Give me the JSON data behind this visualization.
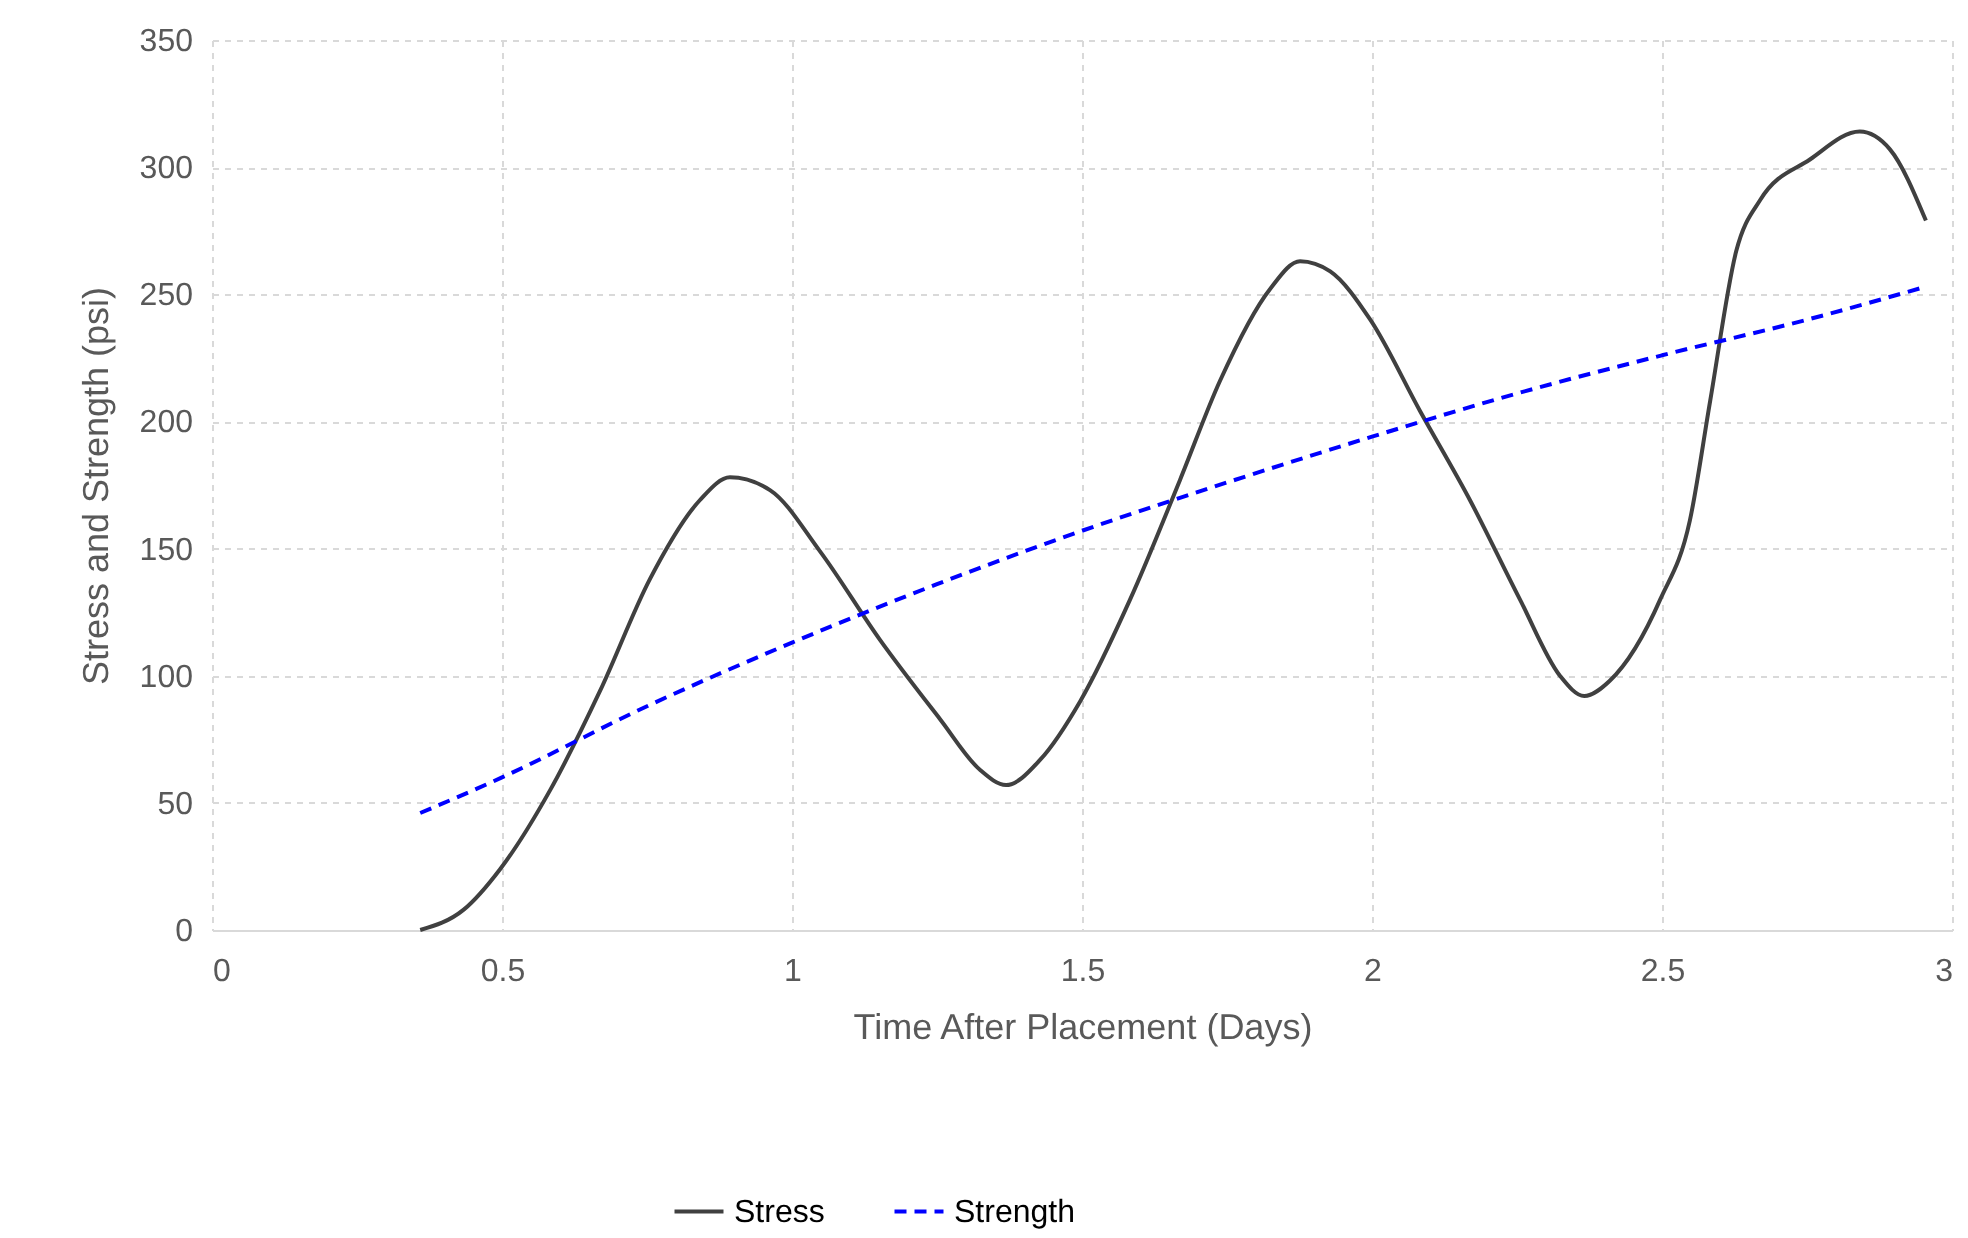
{
  "chart_data": {
    "type": "line",
    "xlabel": "Time After Placement (Days)",
    "ylabel": "Stress and Strength (psi)",
    "xlim": [
      0,
      3
    ],
    "xticks": [
      0,
      0.5,
      1,
      1.5,
      2,
      2.5,
      3
    ],
    "ylim": [
      0,
      350
    ],
    "yticks": [
      0,
      50,
      100,
      150,
      200,
      250,
      300,
      350
    ],
    "grid": true,
    "legend": "bottom",
    "marker": "none",
    "series": [
      {
        "name": "Stress",
        "color": "#404040",
        "line_style": "solid",
        "x": [
          0.359,
          0.434,
          0.497,
          0.583,
          0.669,
          0.755,
          0.841,
          0.893,
          0.962,
          1.048,
          1.152,
          1.255,
          1.324,
          1.369,
          1.428,
          1.497,
          1.583,
          1.669,
          1.738,
          1.824,
          1.876,
          1.928,
          1.997,
          2.083,
          2.169,
          2.255,
          2.324,
          2.366,
          2.41,
          2.497,
          2.548,
          2.583,
          2.628,
          2.669,
          2.755,
          2.841,
          2.893,
          2.955
        ],
        "values": [
          0,
          8,
          24,
          55,
          94,
          138,
          169,
          178,
          173,
          149,
          114,
          83,
          63,
          57,
          67,
          90,
          130,
          177,
          216,
          252,
          263,
          259,
          240,
          204,
          169,
          130,
          100,
          92,
          98,
          130,
          161,
          208,
          267,
          287,
          303,
          314,
          307,
          279
        ]
      },
      {
        "name": "Strength",
        "color": "#0000ff",
        "line_style": "dashed",
        "x": [
          0.359,
          0.5,
          0.75,
          1,
          1.25,
          1.5,
          1.75,
          2,
          2.25,
          2.5,
          2.75,
          2.955
        ],
        "values": [
          46,
          60,
          88,
          113,
          136,
          157,
          176,
          194,
          211,
          226,
          240,
          253
        ]
      }
    ]
  }
}
